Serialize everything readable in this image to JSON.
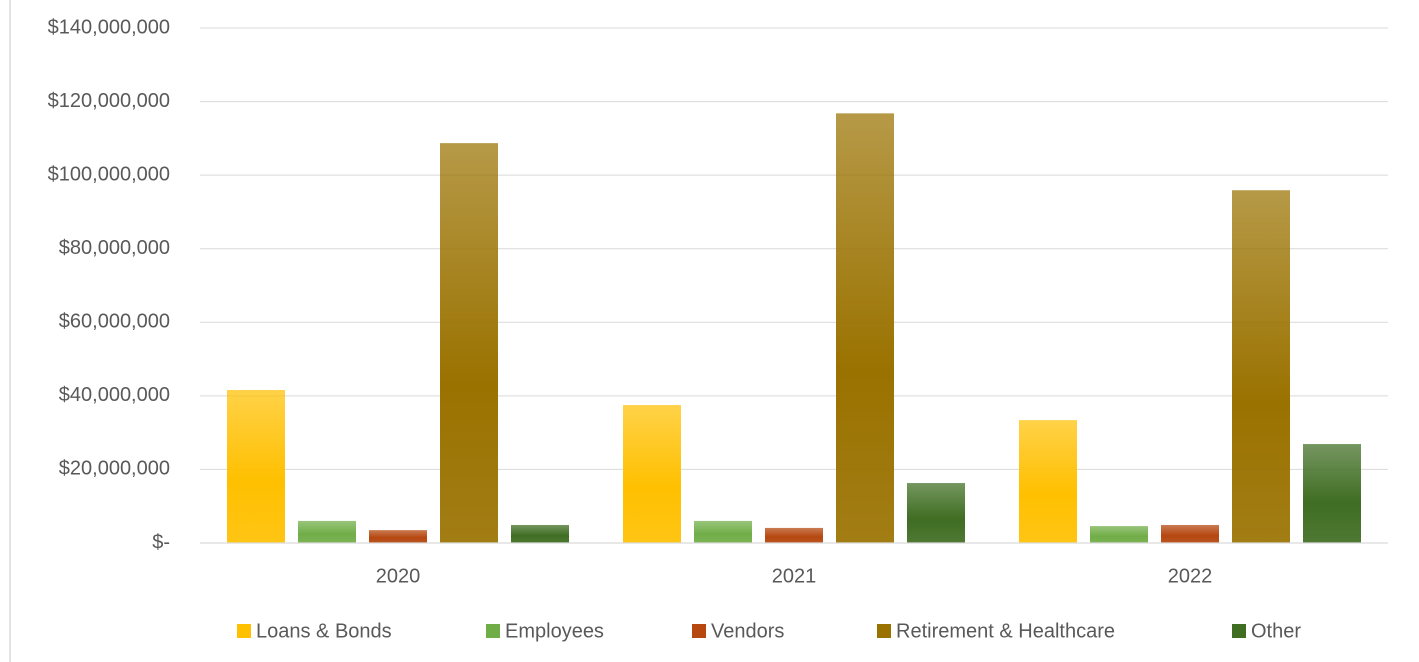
{
  "chart_data": {
    "type": "bar",
    "categories": [
      "2020",
      "2021",
      "2022"
    ],
    "series": [
      {
        "name": "Loans & Bonds",
        "color": "#ffc000",
        "values": [
          41600000,
          37500000,
          33400000
        ]
      },
      {
        "name": "Employees",
        "color": "#70ad47",
        "values": [
          6000000,
          6000000,
          4600000
        ]
      },
      {
        "name": "Vendors",
        "color": "#b5470f",
        "values": [
          3500000,
          4100000,
          4900000
        ]
      },
      {
        "name": "Retirement & Healthcare",
        "color": "#9a7200",
        "values": [
          108700000,
          116800000,
          95900000
        ]
      },
      {
        "name": "Other",
        "color": "#3f6d22",
        "values": [
          4900000,
          16300000,
          26900000
        ]
      }
    ],
    "ylim": [
      0,
      140000000
    ],
    "yticks": [
      {
        "value": 0,
        "label": "$-"
      },
      {
        "value": 20000000,
        "label": "$20,000,000"
      },
      {
        "value": 40000000,
        "label": "$40,000,000"
      },
      {
        "value": 60000000,
        "label": "$60,000,000"
      },
      {
        "value": 80000000,
        "label": "$80,000,000"
      },
      {
        "value": 100000000,
        "label": "$100,000,000"
      },
      {
        "value": 120000000,
        "label": "$120,000,000"
      },
      {
        "value": 140000000,
        "label": "$140,000,000"
      }
    ],
    "grid": true,
    "legend": "bottom"
  }
}
